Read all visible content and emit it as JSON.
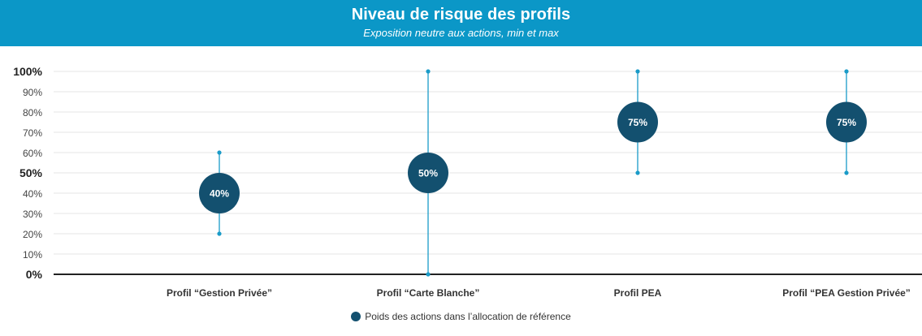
{
  "header": {
    "title": "Niveau de risque des profils",
    "subtitle": "Exposition neutre aux actions, min et max"
  },
  "colors": {
    "header_bg": "#0b97c7",
    "line": "#1a9bc8",
    "marker": "#13506f",
    "axis": "#222222",
    "grid": "#e6e6e6"
  },
  "chart_data": {
    "type": "scatter",
    "title": "Niveau de risque des profils",
    "subtitle": "Exposition neutre aux actions, min et max",
    "xlabel": "",
    "ylabel": "",
    "ylim": [
      0,
      100
    ],
    "yticks": [
      0,
      10,
      20,
      30,
      40,
      50,
      60,
      70,
      80,
      90,
      100
    ],
    "ytick_labels": [
      "0%",
      "10%",
      "20%",
      "30%",
      "40%",
      "50%",
      "60%",
      "70%",
      "80%",
      "90%",
      "100%"
    ],
    "bold_ticks": [
      0,
      50,
      100
    ],
    "grid": true,
    "legend_position": "bottom-center",
    "categories": [
      "Profil “Gestion Privée”",
      "Profil “Carte Blanche”",
      "Profil PEA",
      "Profil “PEA Gestion Privée”"
    ],
    "min": [
      20,
      0,
      50,
      50
    ],
    "max": [
      60,
      100,
      100,
      100
    ],
    "series": [
      {
        "name": "Poids des actions dans l’allocation de référence",
        "values": [
          40,
          50,
          75,
          75
        ],
        "labels": [
          "40%",
          "50%",
          "75%",
          "75%"
        ]
      }
    ]
  }
}
